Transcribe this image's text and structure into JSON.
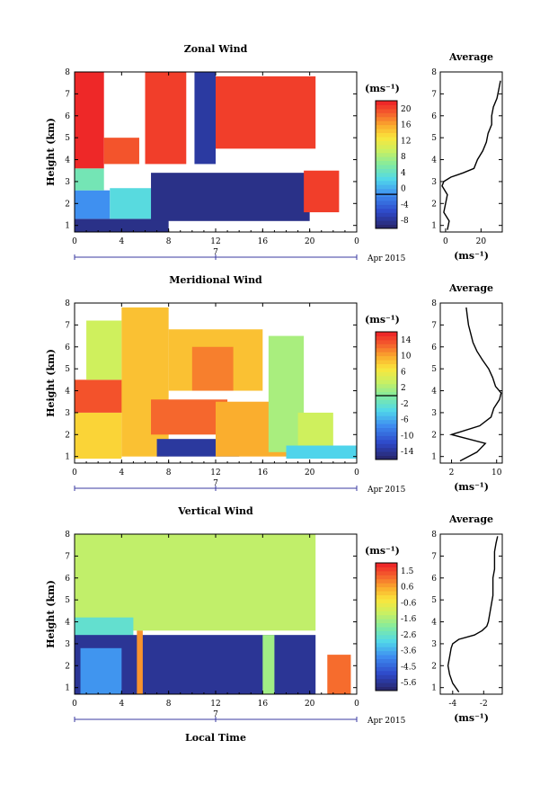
{
  "figure": {
    "xlabel": "Local Time",
    "date_label": "Apr 2015",
    "day_label": "7"
  },
  "chart_data": [
    {
      "type": "heatmap",
      "title": "Zonal Wind",
      "xlabel": "Local Time",
      "ylabel": "Height (km)",
      "x_ticks": [
        "0",
        "4",
        "8",
        "12",
        "16",
        "20",
        "0"
      ],
      "xlim": [
        0,
        24
      ],
      "y_ticks": [
        "1",
        "2",
        "3",
        "4",
        "5",
        "6",
        "7",
        "8"
      ],
      "ylim": [
        0.7,
        8
      ],
      "colorbar": {
        "unit": "(ms⁻¹)",
        "min": -8,
        "max": 22,
        "ticks": [
          "20",
          "16",
          "12",
          "8",
          "4",
          "0",
          "-4",
          "-8"
        ],
        "marker": 0
      },
      "regions": [
        {
          "t0": 0.0,
          "t1": 8.0,
          "h0": 0.7,
          "h1": 1.3,
          "v": -7
        },
        {
          "t0": 0.0,
          "t1": 3.0,
          "h0": 1.3,
          "h1": 2.6,
          "v": 0
        },
        {
          "t0": 0.0,
          "t1": 2.5,
          "h0": 2.6,
          "h1": 3.6,
          "v": 6
        },
        {
          "t0": 0.0,
          "t1": 2.5,
          "h0": 3.6,
          "h1": 8.0,
          "v": 22
        },
        {
          "t0": 2.5,
          "t1": 5.5,
          "h0": 3.8,
          "h1": 5.0,
          "v": 20
        },
        {
          "t0": 3.0,
          "t1": 7.0,
          "h0": 1.3,
          "h1": 2.7,
          "v": 4
        },
        {
          "t0": 6.0,
          "t1": 9.5,
          "h0": 3.8,
          "h1": 8.0,
          "v": 21
        },
        {
          "t0": 10.2,
          "t1": 12.0,
          "h0": 3.8,
          "h1": 8.0,
          "v": -6
        },
        {
          "t0": 6.5,
          "t1": 20.0,
          "h0": 1.2,
          "h1": 3.4,
          "v": -7
        },
        {
          "t0": 12.0,
          "t1": 20.5,
          "h0": 4.5,
          "h1": 7.8,
          "v": 21
        },
        {
          "t0": 19.5,
          "t1": 22.5,
          "h0": 1.6,
          "h1": 3.5,
          "v": 21
        }
      ],
      "profile": {
        "title": "Average",
        "xlabel": "(ms⁻¹)",
        "x_ticks": [
          "0",
          "20"
        ],
        "xlim": [
          -3,
          32
        ],
        "height": [
          0.8,
          1.2,
          1.6,
          2.0,
          2.4,
          2.8,
          3.0,
          3.2,
          3.4,
          3.6,
          4.0,
          4.4,
          4.8,
          5.2,
          5.6,
          6.0,
          6.4,
          6.8,
          7.2,
          7.6
        ],
        "value": [
          1,
          2,
          -1,
          0,
          1,
          -2,
          -1,
          3,
          10,
          16,
          18,
          21,
          23,
          24,
          26,
          26,
          27,
          29,
          30,
          31
        ]
      }
    },
    {
      "type": "heatmap",
      "title": "Meridional Wind",
      "xlabel": "Local Time",
      "ylabel": "Height (km)",
      "x_ticks": [
        "0",
        "4",
        "8",
        "12",
        "16",
        "20",
        "0"
      ],
      "xlim": [
        0,
        24
      ],
      "y_ticks": [
        "1",
        "2",
        "3",
        "4",
        "5",
        "6",
        "7",
        "8"
      ],
      "ylim": [
        0.7,
        8
      ],
      "colorbar": {
        "unit": "(ms⁻¹)",
        "min": -16,
        "max": 16,
        "ticks": [
          "14",
          "10",
          "6",
          "2",
          "-2",
          "-6",
          "-10",
          "-14"
        ],
        "marker": 0
      },
      "regions": [
        {
          "t0": 0.0,
          "t1": 4.0,
          "h0": 0.9,
          "h1": 3.0,
          "v": 8
        },
        {
          "t0": 0.0,
          "t1": 5.0,
          "h0": 3.0,
          "h1": 4.5,
          "v": 14
        },
        {
          "t0": 1.0,
          "t1": 4.0,
          "h0": 4.5,
          "h1": 7.2,
          "v": 4
        },
        {
          "t0": 4.0,
          "t1": 8.0,
          "h0": 1.0,
          "h1": 7.8,
          "v": 9
        },
        {
          "t0": 6.5,
          "t1": 13.0,
          "h0": 2.0,
          "h1": 3.6,
          "v": 13
        },
        {
          "t0": 8.0,
          "t1": 16.0,
          "h0": 4.0,
          "h1": 6.8,
          "v": 9
        },
        {
          "t0": 10.0,
          "t1": 13.5,
          "h0": 4.0,
          "h1": 6.0,
          "v": 12
        },
        {
          "t0": 7.0,
          "t1": 14.0,
          "h0": 1.0,
          "h1": 1.8,
          "v": -14
        },
        {
          "t0": 12.0,
          "t1": 18.0,
          "h0": 1.0,
          "h1": 3.5,
          "v": 10
        },
        {
          "t0": 16.5,
          "t1": 19.5,
          "h0": 1.2,
          "h1": 6.5,
          "v": 2
        },
        {
          "t0": 18.0,
          "t1": 24.0,
          "h0": 0.9,
          "h1": 1.5,
          "v": -4
        },
        {
          "t0": 19.0,
          "t1": 22.0,
          "h0": 1.5,
          "h1": 3.0,
          "v": 4
        }
      ],
      "profile": {
        "title": "Average",
        "xlabel": "(ms⁻¹)",
        "x_ticks": [
          "2",
          "10"
        ],
        "xlim": [
          0,
          11
        ],
        "height": [
          0.8,
          1.2,
          1.6,
          2.0,
          2.4,
          2.8,
          3.2,
          3.6,
          3.9,
          4.2,
          4.6,
          5.0,
          5.4,
          5.8,
          6.2,
          6.6,
          7.0,
          7.4,
          7.8
        ],
        "value": [
          3.5,
          6.5,
          8.0,
          2.0,
          7.0,
          9.0,
          9.5,
          10.5,
          10.8,
          9.8,
          9.3,
          8.6,
          7.5,
          6.5,
          5.8,
          5.4,
          5.0,
          4.8,
          4.6
        ]
      }
    },
    {
      "type": "heatmap",
      "title": "Vertical Wind",
      "xlabel": "Local Time",
      "ylabel": "Height (km)",
      "x_ticks": [
        "0",
        "4",
        "8",
        "12",
        "16",
        "20",
        "0"
      ],
      "xlim": [
        0,
        24
      ],
      "y_ticks": [
        "1",
        "2",
        "3",
        "4",
        "5",
        "6",
        "7",
        "8"
      ],
      "ylim": [
        0.7,
        8
      ],
      "colorbar": {
        "unit": "(ms⁻¹)",
        "min": -6.0,
        "max": 2.0,
        "ticks": [
          "1.5",
          "0.6",
          "-0.6",
          "-1.6",
          "-2.6",
          "-3.6",
          "-4.5",
          "-5.6"
        ],
        "marker": null
      },
      "regions": [
        {
          "t0": 0.0,
          "t1": 20.5,
          "h0": 3.6,
          "h1": 8.0,
          "v": -1.2
        },
        {
          "t0": 0.0,
          "t1": 5.0,
          "h0": 3.0,
          "h1": 4.2,
          "v": -2.6
        },
        {
          "t0": 0.0,
          "t1": 20.5,
          "h0": 0.7,
          "h1": 3.4,
          "v": -5.6
        },
        {
          "t0": 0.5,
          "t1": 4.0,
          "h0": 0.7,
          "h1": 2.8,
          "v": -3.8
        },
        {
          "t0": 5.3,
          "t1": 5.8,
          "h0": 0.7,
          "h1": 3.6,
          "v": 0.8
        },
        {
          "t0": 16.0,
          "t1": 17.0,
          "h0": 0.7,
          "h1": 3.4,
          "v": -1.6
        },
        {
          "t0": 21.5,
          "t1": 23.5,
          "h0": 0.7,
          "h1": 2.5,
          "v": 1.2
        }
      ],
      "profile": {
        "title": "Average",
        "xlabel": "(ms⁻¹)",
        "x_ticks": [
          "-4",
          "-2"
        ],
        "xlim": [
          -4.8,
          -0.8
        ],
        "height": [
          0.8,
          1.2,
          1.6,
          2.0,
          2.4,
          2.8,
          3.0,
          3.2,
          3.4,
          3.6,
          3.8,
          4.0,
          4.4,
          4.8,
          5.2,
          5.6,
          6.0,
          6.4,
          6.8,
          7.2,
          7.6,
          7.9
        ],
        "value": [
          -3.6,
          -4.0,
          -4.2,
          -4.3,
          -4.2,
          -4.1,
          -4.0,
          -3.6,
          -2.6,
          -2.1,
          -1.8,
          -1.7,
          -1.6,
          -1.5,
          -1.4,
          -1.4,
          -1.4,
          -1.3,
          -1.3,
          -1.3,
          -1.2,
          -1.1
        ]
      }
    }
  ]
}
